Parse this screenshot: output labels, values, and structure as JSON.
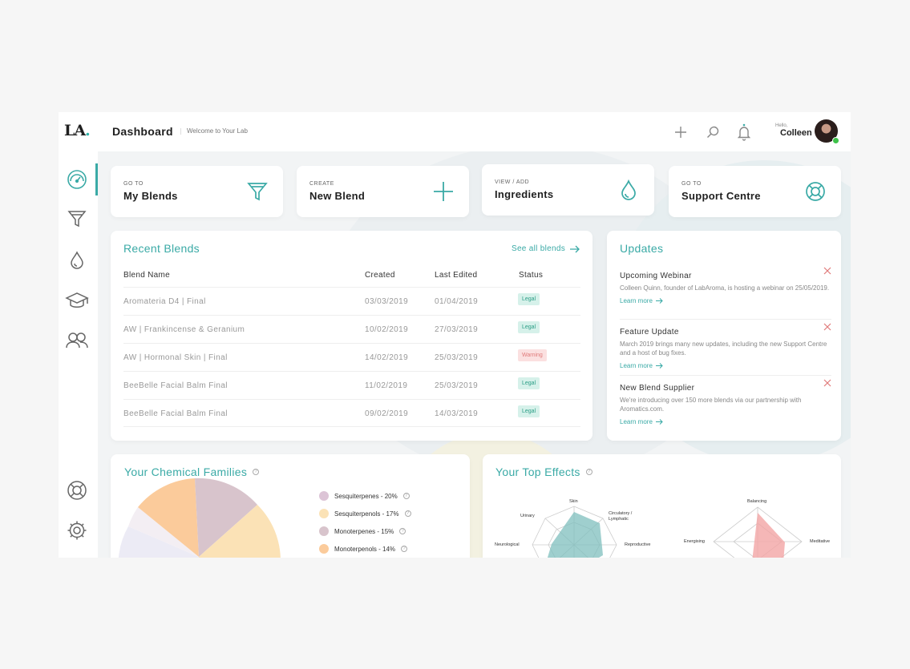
{
  "app": {
    "logo_text": "LA",
    "logo_dot": "."
  },
  "header": {
    "title": "Dashboard",
    "subtitle": "Welcome to Your Lab",
    "greeting": "Hello,",
    "user_name": "Colleen"
  },
  "sidebar": {
    "items": [
      {
        "icon": "dashboard-gauge-icon",
        "active": true
      },
      {
        "icon": "funnel-icon"
      },
      {
        "icon": "droplet-icon"
      },
      {
        "icon": "graduation-cap-icon"
      },
      {
        "icon": "users-icon"
      }
    ],
    "bottom": [
      {
        "icon": "lifebuoy-icon"
      },
      {
        "icon": "gear-icon"
      }
    ]
  },
  "quick_links": [
    {
      "kicker": "GO TO",
      "title": "My Blends",
      "icon": "funnel-icon"
    },
    {
      "kicker": "CREATE",
      "title": "New Blend",
      "icon": "plus-icon"
    },
    {
      "kicker": "VIEW / ADD",
      "title": "Ingredients",
      "icon": "droplet-icon"
    },
    {
      "kicker": "GO TO",
      "title": "Support Centre",
      "icon": "lifebuoy-icon"
    }
  ],
  "recent_blends": {
    "title": "Recent Blends",
    "see_all": "See all blends",
    "columns": [
      "Blend Name",
      "Created",
      "Last Edited",
      "Status"
    ],
    "rows": [
      {
        "name": "Aromateria D4 | Final",
        "created": "03/03/2019",
        "edited": "01/04/2019",
        "status": "Legal"
      },
      {
        "name": "AW | Frankincense & Geranium",
        "created": "10/02/2019",
        "edited": "27/03/2019",
        "status": "Legal"
      },
      {
        "name": "AW | Hormonal Skin | Final",
        "created": "14/02/2019",
        "edited": "25/03/2019",
        "status": "Warning"
      },
      {
        "name": "BeeBelle Facial Balm Final",
        "created": "11/02/2019",
        "edited": "25/03/2019",
        "status": "Legal"
      },
      {
        "name": "BeeBelle Facial Balm Final",
        "created": "09/02/2019",
        "edited": "14/03/2019",
        "status": "Legal"
      }
    ]
  },
  "updates": {
    "title": "Updates",
    "items": [
      {
        "title": "Upcoming Webinar",
        "body": "Colleen Quinn, founder of LabAroma, is hosting a webinar on 25/05/2019.",
        "link": "Learn more"
      },
      {
        "title": "Feature Update",
        "body": "March 2019 brings many new updates, including the new Support Centre and a host of bug fixes.",
        "link": "Learn more"
      },
      {
        "title": "New Blend Supplier",
        "body": "We're introducing over 150 more blends via our partnership with Aromatics.com.",
        "link": "Learn more"
      }
    ]
  },
  "chemical_families": {
    "title": "Your Chemical Families",
    "legend": [
      {
        "label": "Sesquiterpenes - 20%",
        "color": "#dcc4d6"
      },
      {
        "label": "Sesquiterpenols - 17%",
        "color": "#fbe2b6"
      },
      {
        "label": "Monoterpenes - 15%",
        "color": "#d8c4cc"
      },
      {
        "label": "Monoterpenols - 14%",
        "color": "#fbcb9b"
      }
    ]
  },
  "top_effects": {
    "title": "Your Top Effects",
    "radar1_labels": [
      "Skin",
      "Circulatory / Lymphatic",
      "Reproductive",
      "Urinary",
      "Neurological"
    ],
    "radar2_labels": [
      "Balancing",
      "Meditative",
      "Energising"
    ]
  },
  "colors": {
    "accent": "#3aaaa6",
    "legal": "#2a9d85",
    "warning": "#e07a7a",
    "online": "#3ec24a"
  }
}
